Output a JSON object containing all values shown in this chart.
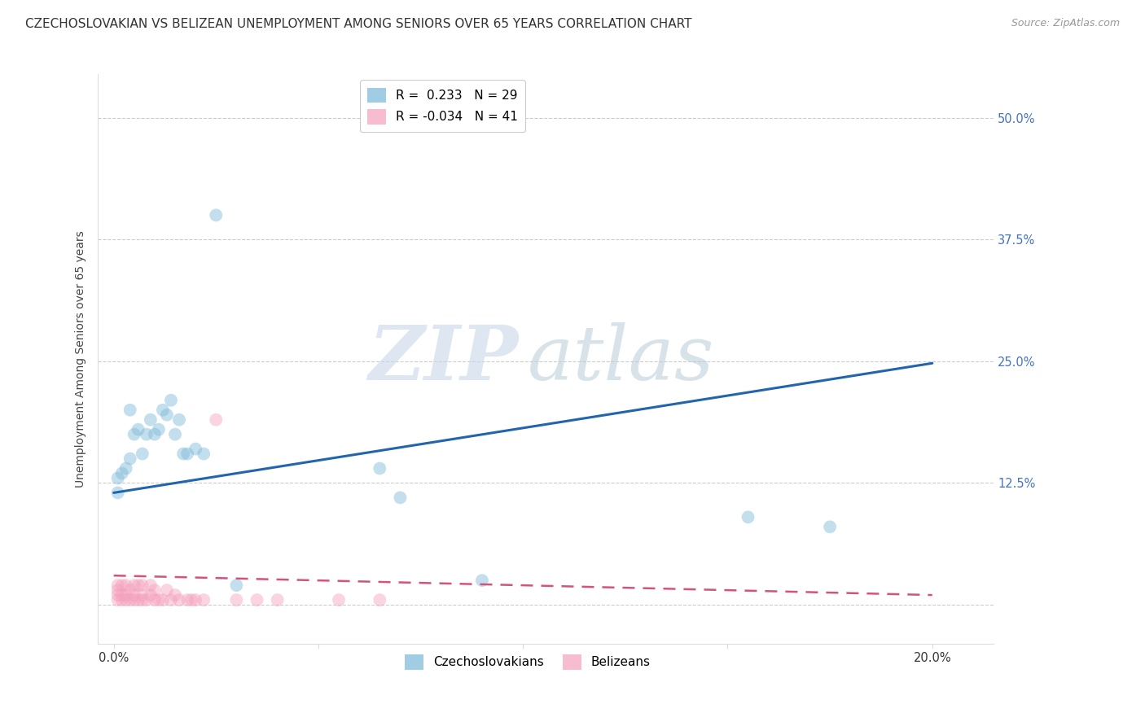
{
  "title": "CZECHOSLOVAKIAN VS BELIZEAN UNEMPLOYMENT AMONG SENIORS OVER 65 YEARS CORRELATION CHART",
  "source": "Source: ZipAtlas.com",
  "ylabel": "Unemployment Among Seniors over 65 years",
  "ytick_values": [
    0.0,
    0.125,
    0.25,
    0.375,
    0.5
  ],
  "ytick_labels": [
    "",
    "12.5%",
    "25.0%",
    "37.5%",
    "50.0%"
  ],
  "xtick_values": [
    0.0,
    0.05,
    0.1,
    0.15,
    0.2
  ],
  "xtick_labels": [
    "0.0%",
    "",
    "",
    "",
    "20.0%"
  ],
  "xlim": [
    -0.004,
    0.215
  ],
  "ylim": [
    -0.04,
    0.545
  ],
  "background_color": "#ffffff",
  "grid_color": "#cccccc",
  "watermark_zip": "ZIP",
  "watermark_atlas": "atlas",
  "czech_color": "#7ab8d9",
  "beliz_color": "#f4a0bc",
  "czech_trend_color": "#2166ac",
  "beliz_trend_color": "#d4537a",
  "czech_x": [
    0.001,
    0.001,
    0.002,
    0.003,
    0.004,
    0.004,
    0.005,
    0.006,
    0.007,
    0.008,
    0.009,
    0.01,
    0.011,
    0.012,
    0.013,
    0.014,
    0.015,
    0.016,
    0.017,
    0.018,
    0.02,
    0.022,
    0.025,
    0.03,
    0.065,
    0.07,
    0.09,
    0.155,
    0.175
  ],
  "czech_y": [
    0.115,
    0.13,
    0.135,
    0.14,
    0.15,
    0.2,
    0.175,
    0.18,
    0.155,
    0.175,
    0.19,
    0.175,
    0.18,
    0.2,
    0.195,
    0.21,
    0.175,
    0.19,
    0.155,
    0.155,
    0.16,
    0.155,
    0.4,
    0.02,
    0.14,
    0.11,
    0.025,
    0.09,
    0.08
  ],
  "beliz_x": [
    0.001,
    0.001,
    0.001,
    0.001,
    0.002,
    0.002,
    0.002,
    0.003,
    0.003,
    0.003,
    0.004,
    0.004,
    0.005,
    0.005,
    0.005,
    0.006,
    0.006,
    0.007,
    0.007,
    0.007,
    0.008,
    0.009,
    0.009,
    0.01,
    0.01,
    0.011,
    0.012,
    0.013,
    0.014,
    0.015,
    0.016,
    0.018,
    0.019,
    0.02,
    0.022,
    0.025,
    0.03,
    0.035,
    0.04,
    0.055,
    0.065
  ],
  "beliz_y": [
    0.005,
    0.01,
    0.015,
    0.02,
    0.005,
    0.01,
    0.02,
    0.005,
    0.01,
    0.02,
    0.005,
    0.015,
    0.005,
    0.01,
    0.02,
    0.005,
    0.02,
    0.005,
    0.01,
    0.02,
    0.005,
    0.01,
    0.02,
    0.005,
    0.015,
    0.005,
    0.005,
    0.015,
    0.005,
    0.01,
    0.005,
    0.005,
    0.005,
    0.005,
    0.005,
    0.19,
    0.005,
    0.005,
    0.005,
    0.005,
    0.005
  ],
  "czech_trend_x": [
    0.0,
    0.2
  ],
  "czech_trend_y": [
    0.115,
    0.248
  ],
  "beliz_trend_x": [
    0.0,
    0.2
  ],
  "beliz_trend_y": [
    0.03,
    0.01
  ],
  "czech_R": 0.233,
  "czech_N": 29,
  "beliz_R": -0.034,
  "beliz_N": 41,
  "legend_labels": [
    "Czechoslovakians",
    "Belizeans"
  ],
  "marker_size": 130,
  "marker_alpha": 0.45,
  "title_fontsize": 11,
  "axis_label_fontsize": 10,
  "tick_fontsize": 10.5,
  "tick_color": "#4472c4",
  "legend_fontsize": 11
}
